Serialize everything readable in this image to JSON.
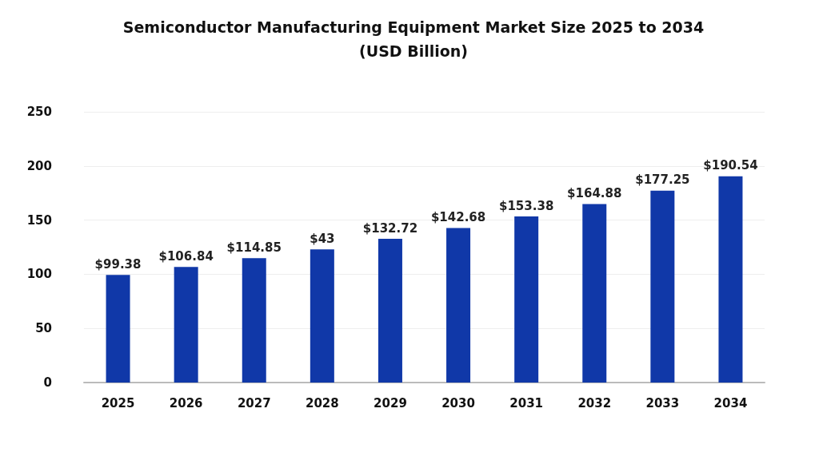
{
  "chart_data": {
    "type": "bar",
    "title": "Semiconductor Manufacturing Equipment Market Size 2025 to 2034\n(USD Billion)",
    "categories": [
      "2025",
      "2026",
      "2027",
      "2028",
      "2029",
      "2030",
      "2031",
      "2032",
      "2033",
      "2034"
    ],
    "values": [
      99.38,
      106.84,
      114.85,
      123,
      132.72,
      142.68,
      153.38,
      164.88,
      177.25,
      190.54
    ],
    "value_labels": [
      "$99.38",
      "$106.84",
      "$114.85",
      null,
      "$132.72",
      "$142.68",
      "$153.38",
      "$164.88",
      "$177.25",
      "$190.54"
    ],
    "color": "#1038a8",
    "ylim": [
      0,
      250
    ],
    "yticks": [
      0,
      50,
      100,
      150,
      200,
      250
    ],
    "grid": "y",
    "annotations": [
      {
        "text": "$43",
        "x": "2028",
        "y": 123
      }
    ]
  }
}
